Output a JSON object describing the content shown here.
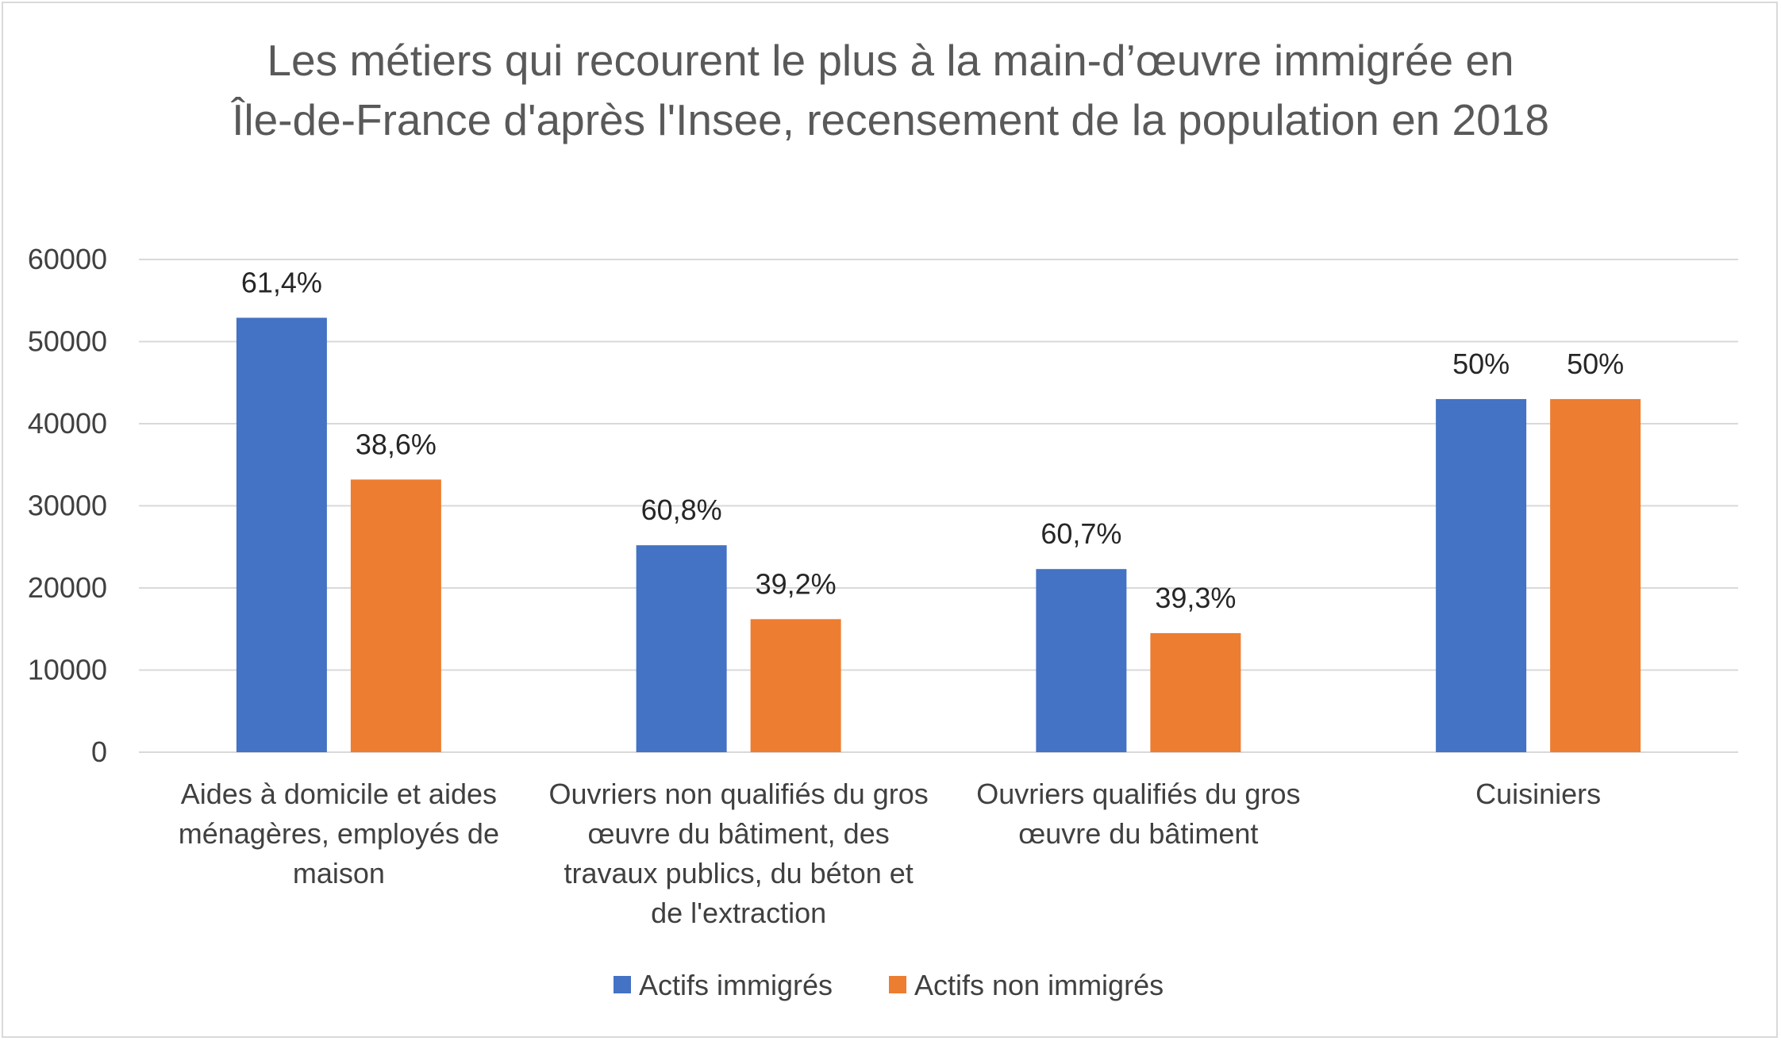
{
  "chart_data": {
    "type": "bar",
    "title": [
      "Les métiers qui recourent le plus à la main-d’œuvre immigrée en",
      "Île-de-France d'après l'Insee, recensement de la population en 2018"
    ],
    "categories": [
      [
        "Aides à domicile et aides",
        "ménagères, employés de",
        "maison"
      ],
      [
        "Ouvriers non qualifiés du gros",
        "œuvre du bâtiment, des",
        "travaux publics, du béton et",
        "de l'extraction"
      ],
      [
        "Ouvriers qualifiés du gros",
        "œuvre du bâtiment"
      ],
      [
        "Cuisiniers"
      ]
    ],
    "series": [
      {
        "name": "Actifs immigrés",
        "color": "#4472c4",
        "values": [
          52900,
          25200,
          22300,
          43000
        ],
        "labels": [
          "61,4%",
          "60,8%",
          "60,7%",
          "50%"
        ]
      },
      {
        "name": "Actifs non immigrés",
        "color": "#ed7d31",
        "values": [
          33200,
          16200,
          14500,
          43000
        ],
        "labels": [
          "38,6%",
          "39,2%",
          "39,3%",
          "50%"
        ]
      }
    ],
    "ylim": [
      0,
      60000
    ],
    "yticks": [
      "0",
      "10000",
      "20000",
      "30000",
      "40000",
      "50000",
      "60000"
    ],
    "grid": true,
    "legend_position": "bottom"
  }
}
